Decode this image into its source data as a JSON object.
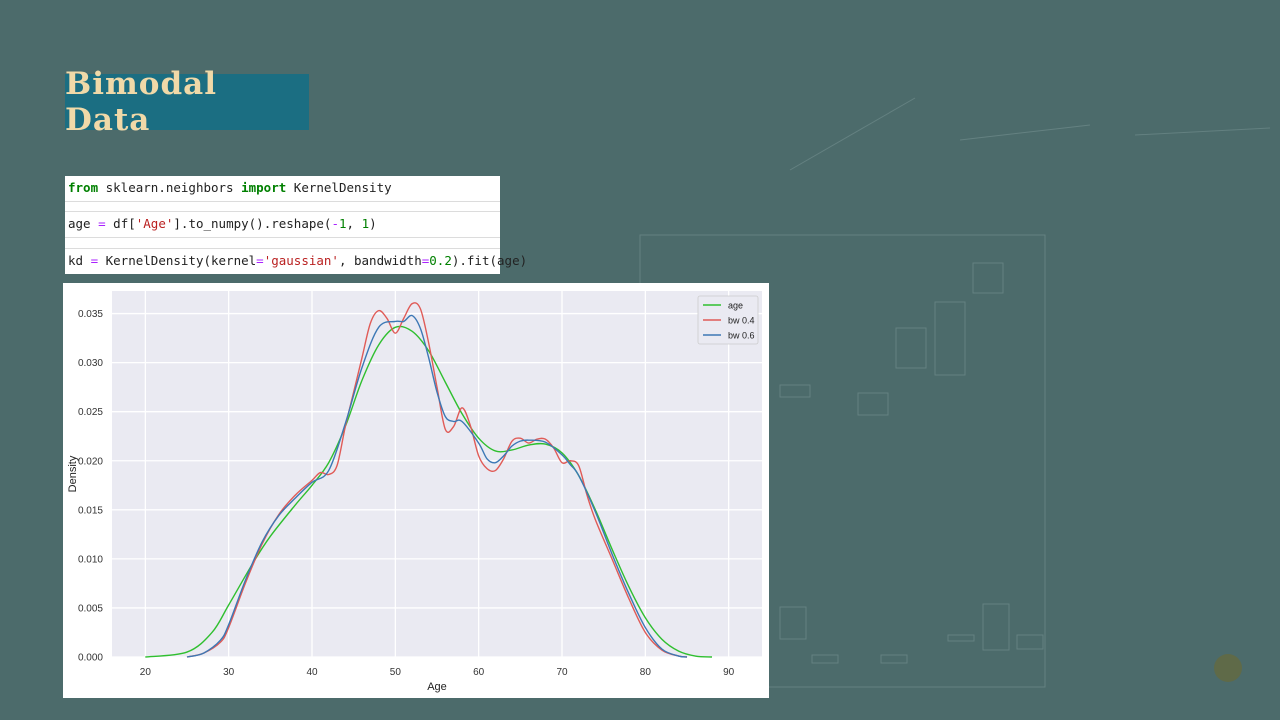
{
  "slide": {
    "title": "Bimodal Data",
    "accent_color": "#1b6e82",
    "title_color": "#f0d9a8",
    "background_color": "#4c6b6b"
  },
  "code": {
    "lines": [
      {
        "parts": [
          {
            "t": "from",
            "c": "kw"
          },
          {
            "t": " sklearn.neighbors ",
            "c": ""
          },
          {
            "t": "import",
            "c": "kw"
          },
          {
            "t": " KernelDensity",
            "c": ""
          }
        ]
      },
      {
        "parts": [
          {
            "t": "age ",
            "c": ""
          },
          {
            "t": "=",
            "c": "op"
          },
          {
            "t": " df[",
            "c": ""
          },
          {
            "t": "'Age'",
            "c": "str"
          },
          {
            "t": "].to_numpy().reshape(",
            "c": ""
          },
          {
            "t": "-",
            "c": "op"
          },
          {
            "t": "1",
            "c": "num"
          },
          {
            "t": ", ",
            "c": ""
          },
          {
            "t": "1",
            "c": "num"
          },
          {
            "t": ")",
            "c": ""
          }
        ]
      },
      {
        "parts": [
          {
            "t": "kd ",
            "c": ""
          },
          {
            "t": "=",
            "c": "op"
          },
          {
            "t": " KernelDensity(kernel",
            "c": ""
          },
          {
            "t": "=",
            "c": "op"
          },
          {
            "t": "'gaussian'",
            "c": "str"
          },
          {
            "t": ", bandwidth",
            "c": ""
          },
          {
            "t": "=",
            "c": "op"
          },
          {
            "t": "0.2",
            "c": "num"
          },
          {
            "t": ").fit(age)",
            "c": ""
          }
        ]
      }
    ]
  },
  "chart_data": {
    "type": "line",
    "xlabel": "Age",
    "ylabel": "Density",
    "xlim": [
      16,
      94
    ],
    "ylim": [
      0,
      0.0373
    ],
    "xticks": [
      20,
      30,
      40,
      50,
      60,
      70,
      80,
      90
    ],
    "yticks": [
      "0.000",
      "0.005",
      "0.010",
      "0.015",
      "0.020",
      "0.025",
      "0.030",
      "0.035"
    ],
    "grid": true,
    "legend_position": "top-right",
    "series": [
      {
        "name": "age",
        "color": "#2fbf2f",
        "points": [
          [
            20,
            0.0
          ],
          [
            25,
            0.0005
          ],
          [
            28,
            0.0025
          ],
          [
            30,
            0.0053
          ],
          [
            33,
            0.0097
          ],
          [
            35,
            0.0123
          ],
          [
            38,
            0.0155
          ],
          [
            40,
            0.0175
          ],
          [
            42,
            0.0198
          ],
          [
            44,
            0.0235
          ],
          [
            46,
            0.0282
          ],
          [
            48,
            0.0318
          ],
          [
            50,
            0.0336
          ],
          [
            52,
            0.0332
          ],
          [
            54,
            0.0312
          ],
          [
            56,
            0.028
          ],
          [
            58,
            0.0248
          ],
          [
            60,
            0.0223
          ],
          [
            62,
            0.021
          ],
          [
            64,
            0.0211
          ],
          [
            66,
            0.0216
          ],
          [
            68,
            0.0217
          ],
          [
            70,
            0.0208
          ],
          [
            72,
            0.0185
          ],
          [
            74,
            0.015
          ],
          [
            76,
            0.011
          ],
          [
            78,
            0.0072
          ],
          [
            80,
            0.004
          ],
          [
            82,
            0.0018
          ],
          [
            84,
            0.0006
          ],
          [
            86,
            0.0001
          ],
          [
            88,
            0.0
          ]
        ]
      },
      {
        "name": "bw 0.4",
        "color": "#e05b57",
        "points": [
          [
            25,
            0.0
          ],
          [
            27,
            0.0004
          ],
          [
            29,
            0.0015
          ],
          [
            30,
            0.003
          ],
          [
            32,
            0.0075
          ],
          [
            34,
            0.0115
          ],
          [
            36,
            0.0145
          ],
          [
            38,
            0.0165
          ],
          [
            40,
            0.018
          ],
          [
            41,
            0.0188
          ],
          [
            42,
            0.0186
          ],
          [
            43,
            0.0195
          ],
          [
            44,
            0.0235
          ],
          [
            45,
            0.027
          ],
          [
            46,
            0.0305
          ],
          [
            47,
            0.034
          ],
          [
            48,
            0.0353
          ],
          [
            49,
            0.0345
          ],
          [
            50,
            0.033
          ],
          [
            51,
            0.0345
          ],
          [
            52,
            0.036
          ],
          [
            53,
            0.0355
          ],
          [
            54,
            0.032
          ],
          [
            55,
            0.0275
          ],
          [
            56,
            0.0232
          ],
          [
            57,
            0.0235
          ],
          [
            58,
            0.0254
          ],
          [
            59,
            0.0236
          ],
          [
            60,
            0.0205
          ],
          [
            61,
            0.0192
          ],
          [
            62,
            0.019
          ],
          [
            63,
            0.0202
          ],
          [
            64,
            0.022
          ],
          [
            65,
            0.0223
          ],
          [
            66,
            0.0218
          ],
          [
            67,
            0.0222
          ],
          [
            68,
            0.0222
          ],
          [
            69,
            0.0213
          ],
          [
            70,
            0.0198
          ],
          [
            71,
            0.02
          ],
          [
            72,
            0.0195
          ],
          [
            73,
            0.0165
          ],
          [
            74,
            0.014
          ],
          [
            76,
            0.01
          ],
          [
            78,
            0.006
          ],
          [
            80,
            0.0025
          ],
          [
            82,
            0.0007
          ],
          [
            84,
            0.0001
          ],
          [
            85,
            0.0
          ]
        ]
      },
      {
        "name": "bw 0.6",
        "color": "#3c78b5",
        "points": [
          [
            25,
            0.0
          ],
          [
            27,
            0.0004
          ],
          [
            29,
            0.0017
          ],
          [
            30,
            0.0033
          ],
          [
            32,
            0.0078
          ],
          [
            34,
            0.0117
          ],
          [
            36,
            0.0144
          ],
          [
            38,
            0.0162
          ],
          [
            40,
            0.0178
          ],
          [
            42,
            0.019
          ],
          [
            44,
            0.0238
          ],
          [
            46,
            0.0295
          ],
          [
            48,
            0.0336
          ],
          [
            50,
            0.0342
          ],
          [
            51,
            0.0342
          ],
          [
            52,
            0.0348
          ],
          [
            53,
            0.0335
          ],
          [
            54,
            0.0305
          ],
          [
            55,
            0.027
          ],
          [
            56,
            0.0245
          ],
          [
            57,
            0.024
          ],
          [
            58,
            0.024
          ],
          [
            60,
            0.0218
          ],
          [
            61,
            0.0202
          ],
          [
            62,
            0.0198
          ],
          [
            63,
            0.0205
          ],
          [
            64,
            0.0215
          ],
          [
            65,
            0.022
          ],
          [
            66,
            0.0221
          ],
          [
            68,
            0.0219
          ],
          [
            70,
            0.0206
          ],
          [
            71,
            0.0196
          ],
          [
            72,
            0.0185
          ],
          [
            74,
            0.0148
          ],
          [
            76,
            0.0105
          ],
          [
            78,
            0.0065
          ],
          [
            80,
            0.003
          ],
          [
            82,
            0.0008
          ],
          [
            84,
            0.0001
          ],
          [
            85,
            0.0
          ]
        ]
      }
    ]
  }
}
